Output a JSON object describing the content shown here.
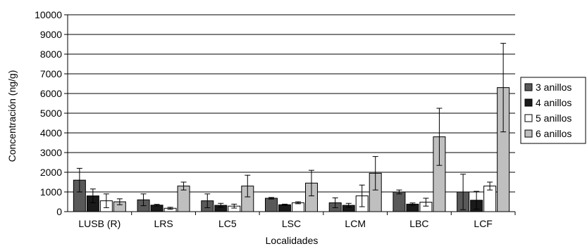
{
  "chart_data": {
    "type": "bar",
    "title": "",
    "xlabel": "Localidades",
    "ylabel": "Concentración (ng/g)",
    "ylim": [
      0,
      10000
    ],
    "yticks": [
      0,
      1000,
      2000,
      3000,
      4000,
      5000,
      6000,
      7000,
      8000,
      9000,
      10000
    ],
    "categories": [
      "LUSB (R)",
      "LRS",
      "LC5",
      "LSC",
      "LCM",
      "LBC",
      "LCF"
    ],
    "grid": "horizontal",
    "legend_position": "right",
    "series": [
      {
        "name": "3 anillos",
        "color": "#595959",
        "values": [
          1600,
          600,
          550,
          680,
          450,
          1000,
          1000
        ],
        "error": [
          600,
          300,
          350,
          40,
          250,
          100,
          900
        ]
      },
      {
        "name": "4 anillos",
        "color": "#1a1a1a",
        "values": [
          800,
          330,
          320,
          350,
          320,
          380,
          580
        ],
        "error": [
          350,
          40,
          100,
          30,
          100,
          60,
          450
        ]
      },
      {
        "name": "5 anillos",
        "color": "#ffffff",
        "values": [
          550,
          170,
          280,
          450,
          800,
          480,
          1300
        ],
        "error": [
          350,
          50,
          100,
          50,
          550,
          200,
          200
        ]
      },
      {
        "name": "6 anillos",
        "color": "#bfbfbf",
        "values": [
          500,
          1300,
          1300,
          1450,
          1950,
          3800,
          6300
        ],
        "error": [
          150,
          200,
          550,
          650,
          850,
          1450,
          2250
        ]
      }
    ]
  }
}
